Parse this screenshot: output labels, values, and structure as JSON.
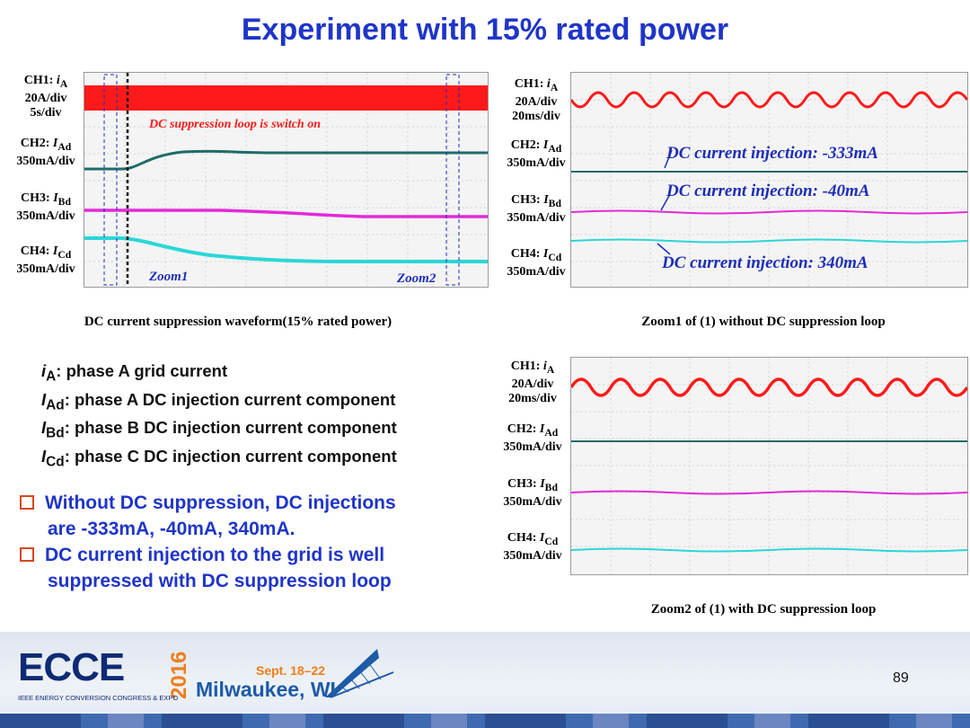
{
  "slide_title": "Experiment with 15% rated power",
  "scope1": {
    "labels": [
      {
        "l1_prefix": "CH1: ",
        "sym": "i",
        "sub": "A",
        "l2": "20A/div",
        "l3": "5s/div"
      },
      {
        "l1_prefix": "CH2: ",
        "sym": "I",
        "sub": "Ad",
        "l2": "350mA/div",
        "l3": ""
      },
      {
        "l1_prefix": "CH3: ",
        "sym": "I",
        "sub": "Bd",
        "l2": "350mA/div",
        "l3": ""
      },
      {
        "l1_prefix": "CH4: ",
        "sym": "I",
        "sub": "Cd",
        "l2": "350mA/div",
        "l3": ""
      }
    ],
    "annotation_switch": "DC suppression loop is switch on",
    "zoom1_label": "Zoom1",
    "zoom2_label": "Zoom2",
    "caption": "DC current suppression waveform(15% rated power)"
  },
  "scope2": {
    "labels": [
      {
        "l1_prefix": "CH1: ",
        "sym": "i",
        "sub": "A",
        "l2": "20A/div",
        "l3": "20ms/div"
      },
      {
        "l1_prefix": "CH2: ",
        "sym": "I",
        "sub": "Ad",
        "l2": "350mA/div",
        "l3": ""
      },
      {
        "l1_prefix": "CH3: ",
        "sym": "I",
        "sub": "Bd",
        "l2": "350mA/div",
        "l3": ""
      },
      {
        "l1_prefix": "CH4: ",
        "sym": "I",
        "sub": "Cd",
        "l2": "350mA/div",
        "l3": ""
      }
    ],
    "annotations": [
      "DC current injection: -333mA",
      "DC current injection: -40mA",
      "DC current injection: 340mA"
    ],
    "caption": "Zoom1 of (1) without DC suppression loop"
  },
  "scope3": {
    "labels": [
      {
        "l1_prefix": "CH1: ",
        "sym": "i",
        "sub": "A",
        "l2": "20A/div",
        "l3": "20ms/div"
      },
      {
        "l1_prefix": "CH2: ",
        "sym": "I",
        "sub": "Ad",
        "l2": "350mA/div",
        "l3": ""
      },
      {
        "l1_prefix": "CH3: ",
        "sym": "I",
        "sub": "Bd",
        "l2": "350mA/div",
        "l3": ""
      },
      {
        "l1_prefix": "CH4: ",
        "sym": "I",
        "sub": "Cd",
        "l2": "350mA/div",
        "l3": ""
      }
    ],
    "caption": "Zoom2 of (1) with DC suppression loop"
  },
  "legend": [
    {
      "sym": "i",
      "sub": "A",
      "text": ":  phase A grid current"
    },
    {
      "sym": "I",
      "sub": "Ad",
      "text": ": phase A DC injection current component"
    },
    {
      "sym": "I",
      "sub": "Bd",
      "text": ": phase B DC injection current component"
    },
    {
      "sym": "I",
      "sub": "Cd",
      "text": ": phase C DC injection current component"
    }
  ],
  "bullets": [
    {
      "line1": "Without DC suppression, DC injections",
      "line2": "are -333mA, -40mA, 340mA."
    },
    {
      "line1": "DC current injection to the grid is well",
      "line2": "suppressed with DC suppression loop"
    }
  ],
  "footer": {
    "logo_text": "ECCE",
    "logo_year": "2016",
    "logo_subtitle": "IEEE ENERGY CONVERSION CONGRESS & EXPO",
    "dates": "Sept. 18–22",
    "city": "Milwaukee, WI",
    "page_number": "89"
  },
  "colors": {
    "title": "#1f35c8",
    "ch1": "#ff1a1a",
    "ch2": "#1f6b6b",
    "ch3": "#e22ad8",
    "ch4": "#2bd6d6",
    "annotation": "#1c2db8",
    "bullet_box": "#d9461c"
  }
}
